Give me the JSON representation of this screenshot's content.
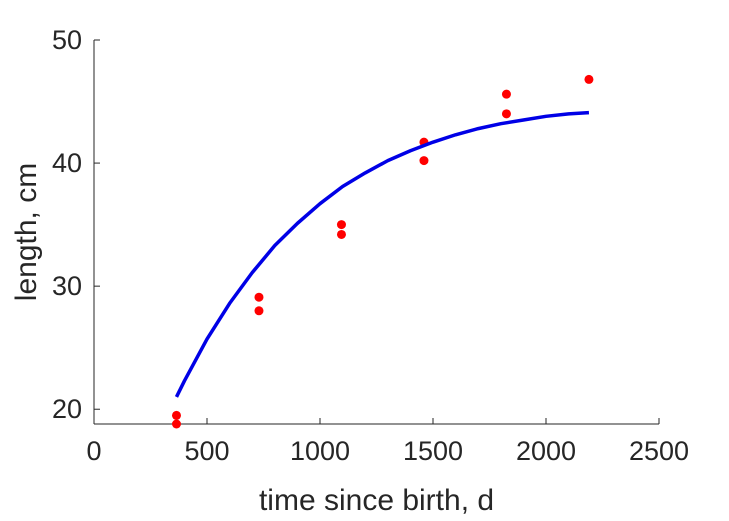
{
  "chart_data": {
    "type": "scatter",
    "title": "",
    "xlabel": "time since birth, d",
    "ylabel": "length, cm",
    "xlim": [
      0,
      2500
    ],
    "ylim": [
      18.8,
      50
    ],
    "xticks": [
      0,
      500,
      1000,
      1500,
      2000,
      2500
    ],
    "yticks": [
      20,
      30,
      40,
      50
    ],
    "grid": false,
    "legend": "none",
    "series": [
      {
        "kind": "points",
        "color": "#ff0000",
        "x": [
          365,
          365,
          730,
          730,
          1095,
          1095,
          1460,
          1460,
          1825,
          1825,
          2190
        ],
        "y": [
          19.5,
          18.8,
          29.1,
          28.0,
          35.0,
          34.2,
          41.7,
          40.2,
          45.6,
          44.0,
          46.8
        ]
      },
      {
        "kind": "line",
        "color": "#0000e6",
        "x": [
          365,
          400,
          500,
          600,
          700,
          800,
          900,
          1000,
          1100,
          1200,
          1300,
          1400,
          1500,
          1600,
          1700,
          1800,
          1900,
          2000,
          2100,
          2190
        ],
        "y": [
          21.0,
          22.3,
          25.7,
          28.6,
          31.1,
          33.3,
          35.1,
          36.7,
          38.1,
          39.2,
          40.2,
          41.0,
          41.7,
          42.3,
          42.8,
          43.2,
          43.5,
          43.8,
          44.0,
          44.1
        ]
      }
    ]
  }
}
